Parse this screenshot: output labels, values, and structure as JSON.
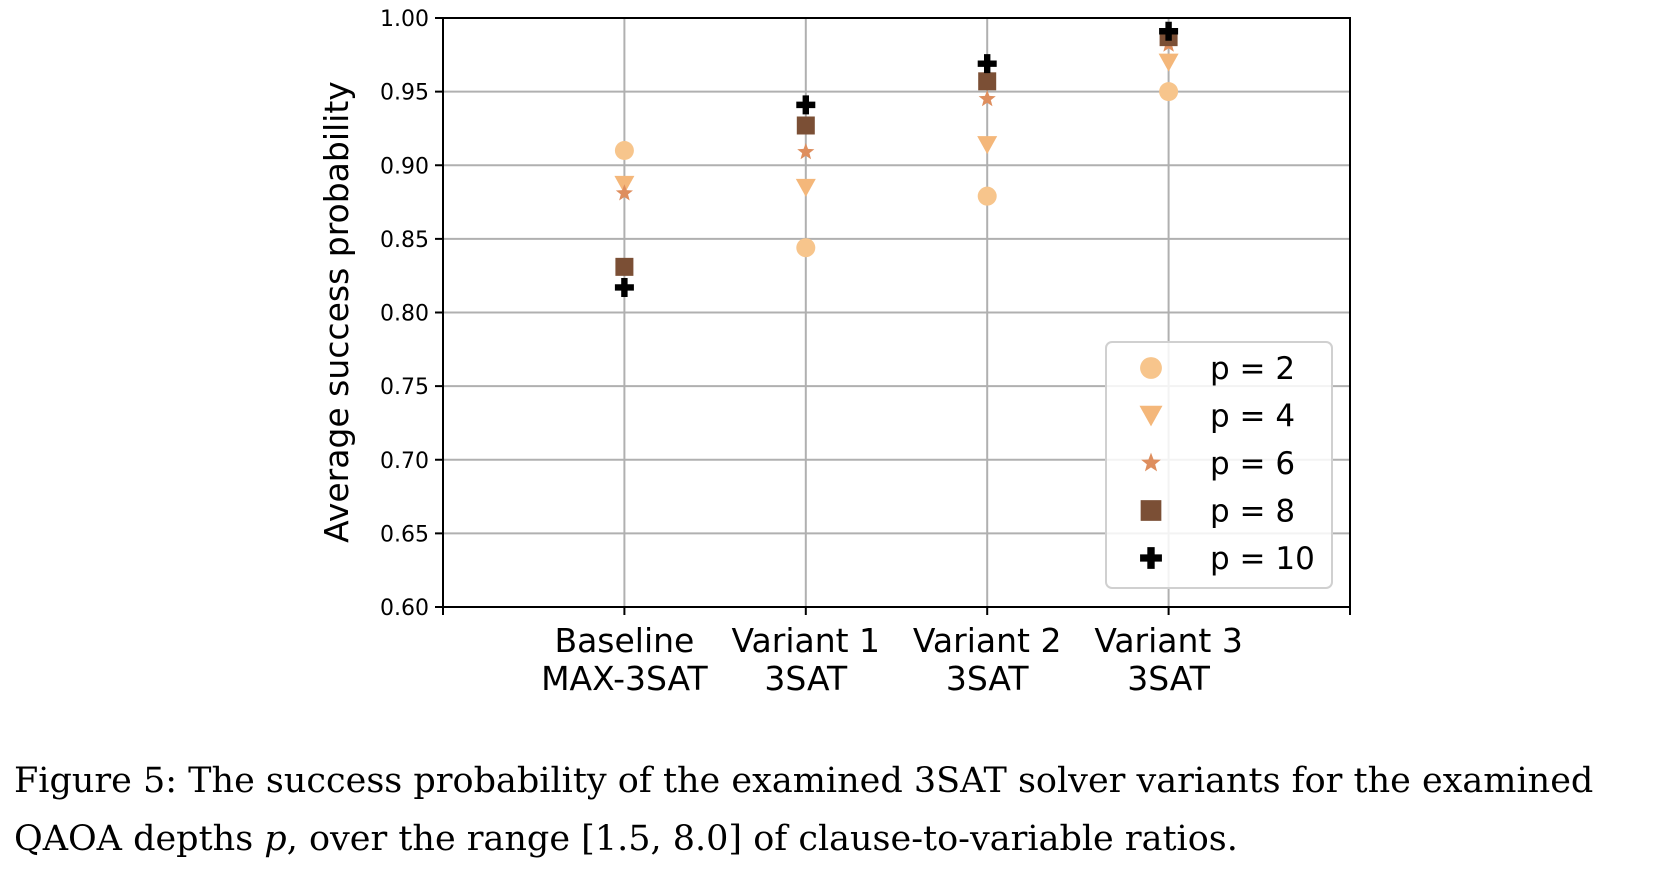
{
  "chart_data": {
    "type": "scatter",
    "categories": [
      [
        "Baseline",
        "MAX-3SAT"
      ],
      [
        "Variant 1",
        "3SAT"
      ],
      [
        "Variant 2",
        "3SAT"
      ],
      [
        "Variant 3",
        "3SAT"
      ]
    ],
    "xlabel": "",
    "ylabel": "Average success probability",
    "ylim": [
      0.6,
      1.0
    ],
    "yticks": [
      "0.60",
      "0.65",
      "0.70",
      "0.75",
      "0.80",
      "0.85",
      "0.90",
      "0.95",
      "1.00"
    ],
    "grid": true,
    "legend_position": "lower right",
    "series": [
      {
        "name": "p = 2",
        "marker": "circle",
        "color": "#f7c58c",
        "values": [
          0.91,
          0.844,
          0.879,
          0.95
        ]
      },
      {
        "name": "p = 4",
        "marker": "triangle-down",
        "color": "#f4b77a",
        "values": [
          0.887,
          0.885,
          0.914,
          0.97
        ]
      },
      {
        "name": "p = 6",
        "marker": "star",
        "color": "#de8e5e",
        "values": [
          0.881,
          0.909,
          0.945,
          0.982
        ]
      },
      {
        "name": "p = 8",
        "marker": "square",
        "color": "#7b4f35",
        "values": [
          0.831,
          0.927,
          0.957,
          0.987
        ]
      },
      {
        "name": "p = 10",
        "marker": "plus",
        "color": "#000000",
        "values": [
          0.817,
          0.941,
          0.969,
          0.991
        ]
      }
    ]
  },
  "caption": {
    "line1": "Figure 5: The success probability of the examined 3SAT solver variants for the examined",
    "line2_prefix": "QAOA depths ",
    "line2_var": "p",
    "line2_suffix": ", over the range [1.5, 8.0] of clause-to-variable ratios."
  }
}
